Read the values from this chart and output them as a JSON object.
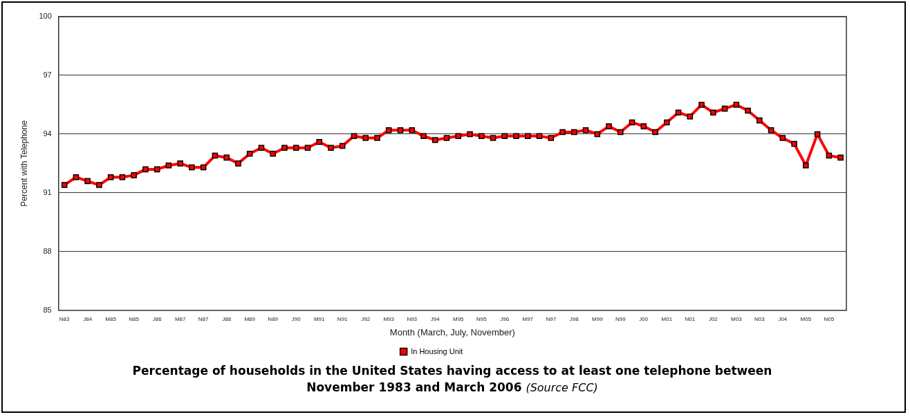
{
  "chart_data": {
    "type": "line",
    "title": "Percentage of households in the United States having access to at least one telephone between November 1983 and March 2006",
    "annotations": [
      "(Source FCC)"
    ],
    "xlabel": "Month (March, July, November)",
    "ylabel": "Percent with Telephone",
    "categories": [
      "N83",
      null,
      "J84",
      null,
      "M85",
      null,
      "N85",
      null,
      "J86",
      null,
      "M87",
      null,
      "N87",
      null,
      "J88",
      null,
      "M89",
      null,
      "N89",
      null,
      "J90",
      null,
      "M91",
      null,
      "N91",
      null,
      "J92",
      null,
      "M93",
      null,
      "N93",
      null,
      "J94",
      null,
      "M95",
      null,
      "N95",
      null,
      "J96",
      null,
      "M97",
      null,
      "N97",
      null,
      "J98",
      null,
      "M99",
      null,
      "N99",
      null,
      "J00",
      null,
      "M01",
      null,
      "N01",
      null,
      "J02",
      null,
      "M03",
      null,
      "N03",
      null,
      "J04",
      null,
      "M05",
      null,
      "N05",
      null
    ],
    "series": [
      {
        "name": "In Housing Unit",
        "color": "#ff0000",
        "values": [
          91.4,
          91.8,
          91.6,
          91.4,
          91.8,
          91.8,
          91.9,
          92.2,
          92.2,
          92.4,
          92.5,
          92.3,
          92.3,
          92.9,
          92.8,
          92.5,
          93.0,
          93.3,
          93.0,
          93.3,
          93.3,
          93.3,
          93.6,
          93.3,
          93.4,
          93.9,
          93.8,
          93.8,
          94.2,
          94.2,
          94.2,
          93.9,
          93.7,
          93.8,
          93.9,
          94.0,
          93.9,
          93.8,
          93.9,
          93.9,
          93.9,
          93.9,
          93.8,
          94.1,
          94.1,
          94.2,
          94.0,
          94.4,
          94.1,
          94.6,
          94.4,
          94.1,
          94.6,
          95.1,
          94.9,
          95.5,
          95.1,
          95.3,
          95.5,
          95.2,
          94.7,
          94.2,
          93.8,
          93.5,
          92.4,
          94.0,
          92.9,
          92.8
        ]
      }
    ],
    "ylim": [
      85,
      100
    ],
    "yticks": [
      85,
      88,
      91,
      94,
      97,
      100
    ],
    "grid": "y",
    "legend": "bottom",
    "marker": "square",
    "line_style": "solid"
  }
}
